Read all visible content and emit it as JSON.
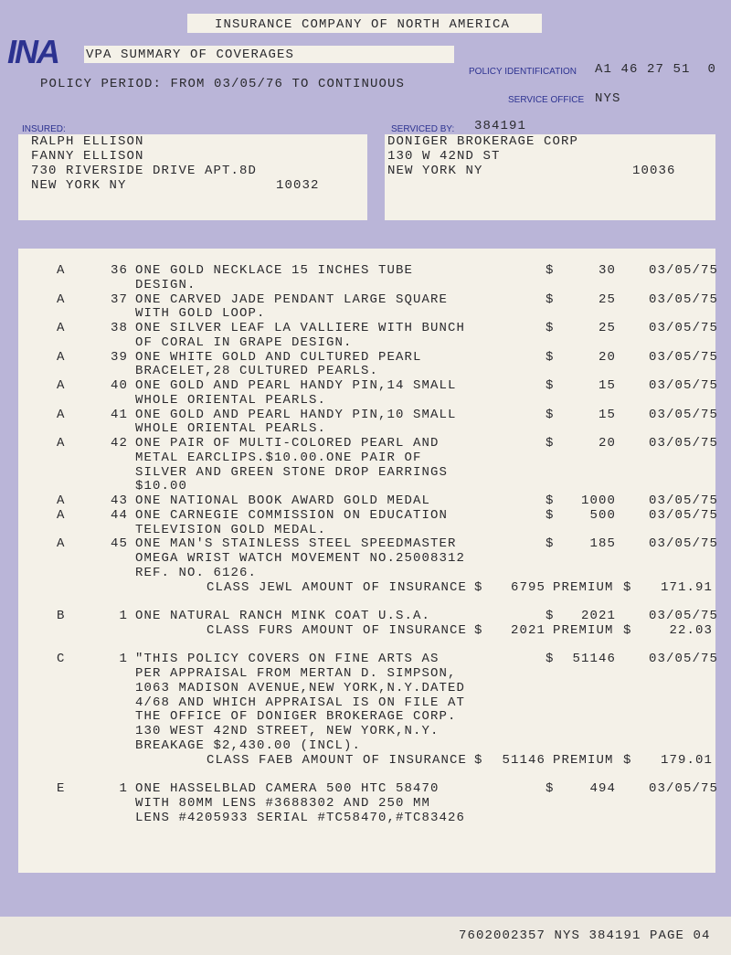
{
  "header": {
    "title": "INSURANCE COMPANY OF NORTH AMERICA",
    "logo": "INA",
    "form_title": "VPA SUMMARY OF COVERAGES",
    "policy_period": "POLICY PERIOD: FROM 03/05/76 TO CONTINUOUS",
    "policy_id_label": "POLICY IDENTIFICATION",
    "policy_id": "A1 46 27 51  0",
    "service_office_label": "SERVICE OFFICE",
    "service_office": "NYS"
  },
  "insured": {
    "label": "INSURED:",
    "lines": [
      "RALPH ELLISON",
      "FANNY ELLISON",
      "730 RIVERSIDE DRIVE APT.8D",
      "NEW YORK NY"
    ],
    "zip": "10032"
  },
  "serviced_by": {
    "label": "SERVICED BY:",
    "id": "384191",
    "lines": [
      "DONIGER BROKERAGE CORP",
      "130 W 42ND ST",
      "NEW YORK NY"
    ],
    "zip": "10036"
  },
  "groups": [
    {
      "items": [
        {
          "class": "A",
          "num": "36",
          "lines": [
            "ONE GOLD NECKLACE 15 INCHES TUBE",
            "DESIGN."
          ],
          "dollar": "$",
          "amount": "30",
          "date": "03/05/75"
        },
        {
          "class": "A",
          "num": "37",
          "lines": [
            "ONE CARVED JADE PENDANT LARGE SQUARE",
            "WITH GOLD LOOP."
          ],
          "dollar": "$",
          "amount": "25",
          "date": "03/05/75"
        },
        {
          "class": "A",
          "num": "38",
          "lines": [
            "ONE SILVER LEAF LA VALLIERE WITH BUNCH",
            "OF CORAL IN GRAPE DESIGN."
          ],
          "dollar": "$",
          "amount": "25",
          "date": "03/05/75"
        },
        {
          "class": "A",
          "num": "39",
          "lines": [
            "ONE WHITE GOLD AND CULTURED PEARL",
            "BRACELET,28 CULTURED PEARLS."
          ],
          "dollar": "$",
          "amount": "20",
          "date": "03/05/75"
        },
        {
          "class": "A",
          "num": "40",
          "lines": [
            "ONE GOLD AND PEARL HANDY PIN,14 SMALL",
            "WHOLE ORIENTAL PEARLS."
          ],
          "dollar": "$",
          "amount": "15",
          "date": "03/05/75"
        },
        {
          "class": "A",
          "num": "41",
          "lines": [
            "ONE GOLD AND PEARL HANDY PIN,10 SMALL",
            "WHOLE ORIENTAL PEARLS."
          ],
          "dollar": "$",
          "amount": "15",
          "date": "03/05/75"
        },
        {
          "class": "A",
          "num": "42",
          "lines": [
            "ONE PAIR OF MULTI-COLORED PEARL AND",
            "METAL EARCLIPS.$10.00.ONE PAIR OF",
            "SILVER AND GREEN STONE DROP EARRINGS",
            "$10.00"
          ],
          "dollar": "$",
          "amount": "20",
          "date": "03/05/75"
        },
        {
          "class": "A",
          "num": "43",
          "lines": [
            "ONE NATIONAL BOOK AWARD GOLD MEDAL"
          ],
          "dollar": "$",
          "amount": "1000",
          "date": "03/05/75"
        },
        {
          "class": "A",
          "num": "44",
          "lines": [
            "ONE CARNEGIE COMMISSION ON EDUCATION",
            "TELEVISION GOLD MEDAL."
          ],
          "dollar": "$",
          "amount": "500",
          "date": "03/05/75"
        },
        {
          "class": "A",
          "num": "45",
          "lines": [
            "ONE MAN'S STAINLESS STEEL SPEEDMASTER",
            "OMEGA WRIST WATCH MOVEMENT NO.25008312",
            "REF. NO. 6126."
          ],
          "dollar": "$",
          "amount": "185",
          "date": "03/05/75"
        }
      ],
      "summary": {
        "text": "CLASS JEWL AMOUNT OF INSURANCE",
        "dollar": "$",
        "amount": "6795",
        "premium_label": "PREMIUM",
        "premium_dollar": "$",
        "premium": "171.91"
      }
    },
    {
      "items": [
        {
          "class": "B",
          "num": "1",
          "lines": [
            "ONE NATURAL RANCH MINK COAT U.S.A."
          ],
          "dollar": "$",
          "amount": "2021",
          "date": "03/05/75"
        }
      ],
      "summary": {
        "text": "CLASS FURS AMOUNT OF INSURANCE",
        "dollar": "$",
        "amount": "2021",
        "premium_label": "PREMIUM",
        "premium_dollar": "$",
        "premium": "22.03"
      }
    },
    {
      "items": [
        {
          "class": "C",
          "num": "1",
          "lines": [
            "\"THIS POLICY COVERS ON FINE ARTS AS",
            "PER APPRAISAL FROM MERTAN D. SIMPSON,",
            "1063 MADISON AVENUE,NEW YORK,N.Y.DATED",
            "4/68 AND WHICH APPRAISAL IS ON FILE AT",
            "THE OFFICE OF DONIGER BROKERAGE CORP.",
            "130 WEST 42ND STREET, NEW YORK,N.Y.",
            "BREAKAGE $2,430.00 (INCL)."
          ],
          "dollar": "$",
          "amount": "51146",
          "date": "03/05/75"
        }
      ],
      "summary": {
        "text": "CLASS FAEB AMOUNT OF INSURANCE",
        "dollar": "$",
        "amount": "51146",
        "premium_label": "PREMIUM",
        "premium_dollar": "$",
        "premium": "179.01"
      }
    },
    {
      "items": [
        {
          "class": "E",
          "num": "1",
          "lines": [
            "ONE HASSELBLAD CAMERA 500 HTC 58470",
            "WITH 80MM LENS #3688302 AND 250 MM",
            "LENS #4205933 SERIAL #TC58470,#TC83426"
          ],
          "dollar": "$",
          "amount": "494",
          "date": "03/05/75"
        }
      ]
    }
  ],
  "footer": "7602002357 NYS 384191 PAGE 04"
}
